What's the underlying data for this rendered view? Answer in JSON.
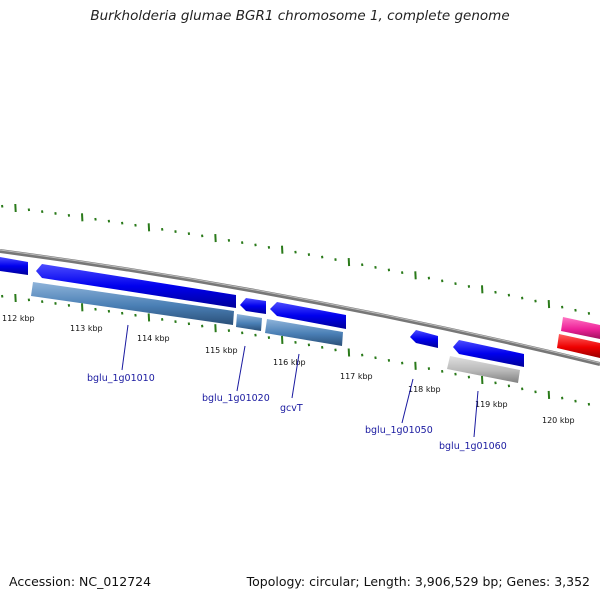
{
  "title": "Burkholderia glumae BGR1 chromosome 1, complete genome",
  "footer": {
    "accession_label": "Accession: NC_012724",
    "summary": "Topology: circular; Length: 3,906,529 bp; Genes: 3,352"
  },
  "scale": {
    "kbp_labels": [
      "112 kbp",
      "113 kbp",
      "114 kbp",
      "115 kbp",
      "116 kbp",
      "117 kbp",
      "118 kbp",
      "119 kbp",
      "120 kbp"
    ]
  },
  "gene_labels": [
    "bglu_1g01010",
    "bglu_1g01020",
    "gcvT",
    "bglu_1g01050",
    "bglu_1g01060"
  ],
  "colors": {
    "cds_blue": "#0000ee",
    "gene_steelblue": "#4a7fb5",
    "gene_gray": "#b8b8b8",
    "cds_pink": "#ee2299",
    "cds_red": "#ee0000",
    "tick_green": "#2a7a1a",
    "backbone": "#777777"
  }
}
